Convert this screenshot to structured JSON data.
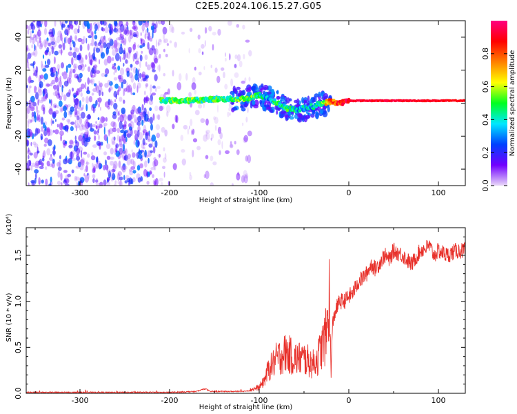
{
  "title": "C2E5.2024.106.15.27.G05",
  "chart_data": [
    {
      "type": "heatmap",
      "title": "C2E5.2024.106.15.27.G05",
      "xlabel": "Height of straight line (km)",
      "ylabel": "Frequency (Hz)",
      "xlim": [
        -360,
        130
      ],
      "ylim": [
        -50,
        50
      ],
      "xticks": [
        -300,
        -200,
        -100,
        0,
        100
      ],
      "yticks": [
        -40,
        -20,
        0,
        20,
        40
      ],
      "colorbar": {
        "label": "Normalized spectral amplitude",
        "range": [
          0,
          1
        ],
        "ticks": [
          0.0,
          0.2,
          0.4,
          0.6,
          0.8
        ],
        "tick_labels": [
          "0.0",
          "0.2",
          "0.4",
          "0.6",
          "0.8"
        ],
        "colors": [
          "#e8d8f8",
          "#7000ff",
          "#0040ff",
          "#00e8ff",
          "#00ff20",
          "#ffff00",
          "#ff8000",
          "#ff0000",
          "#ff0080"
        ]
      },
      "signal_ridge": {
        "x": [
          -210,
          -180,
          -150,
          -130,
          -110,
          -100,
          -90,
          -80,
          -70,
          -60,
          -50,
          -40,
          -30,
          -20,
          -10,
          0,
          50,
          100,
          130
        ],
        "frequency": [
          1.5,
          1.5,
          2.5,
          2.5,
          3,
          5,
          3,
          0,
          -3,
          -4,
          -3,
          -2,
          0,
          1,
          0,
          1.5,
          1.5,
          1.5,
          1.5
        ],
        "amplitude": [
          0.45,
          0.5,
          0.45,
          0.45,
          0.55,
          0.45,
          0.35,
          0.45,
          0.45,
          0.4,
          0.35,
          0.35,
          0.5,
          0.8,
          0.85,
          0.92,
          0.92,
          0.9,
          0.88
        ]
      },
      "noise_region": {
        "x_range": [
          -360,
          -120
        ],
        "amplitude": [
          0.05,
          0.3
        ]
      }
    },
    {
      "type": "line",
      "xlabel": "Height of straight line (km)",
      "ylabel": "SNR (10 * v/v)",
      "y_scale_label": "(x10⁴)",
      "xlim": [
        -360,
        130
      ],
      "ylim": [
        0,
        1.8
      ],
      "xticks": [
        -300,
        -200,
        -100,
        0,
        100
      ],
      "yticks": [
        0.0,
        0.5,
        1.0,
        1.5
      ],
      "ytick_labels": [
        "0.0",
        "0.5",
        "1.0",
        "1.5"
      ],
      "series": [
        {
          "name": "SNR",
          "color": "#e8302a",
          "x": [
            -360,
            -300,
            -250,
            -200,
            -170,
            -160,
            -155,
            -140,
            -120,
            -110,
            -100,
            -95,
            -90,
            -85,
            -80,
            -70,
            -60,
            -50,
            -40,
            -35,
            -30,
            -25,
            -22,
            -20,
            -18,
            -15,
            -10,
            -5,
            0,
            5,
            10,
            20,
            25,
            30,
            40,
            45,
            50,
            60,
            70,
            75,
            80,
            90,
            95,
            100,
            110,
            120,
            130
          ],
          "y": [
            0.01,
            0.01,
            0.01,
            0.01,
            0.02,
            0.05,
            0.02,
            0.02,
            0.02,
            0.03,
            0.05,
            0.1,
            0.2,
            0.25,
            0.3,
            0.35,
            0.3,
            0.3,
            0.25,
            0.3,
            0.4,
            0.5,
            0.85,
            0.2,
            0.75,
            0.9,
            1.0,
            1.0,
            1.05,
            1.1,
            1.2,
            1.3,
            1.4,
            1.35,
            1.5,
            1.45,
            1.55,
            1.5,
            1.4,
            1.48,
            1.55,
            1.6,
            1.5,
            1.55,
            1.5,
            1.55,
            1.55
          ]
        }
      ]
    }
  ]
}
